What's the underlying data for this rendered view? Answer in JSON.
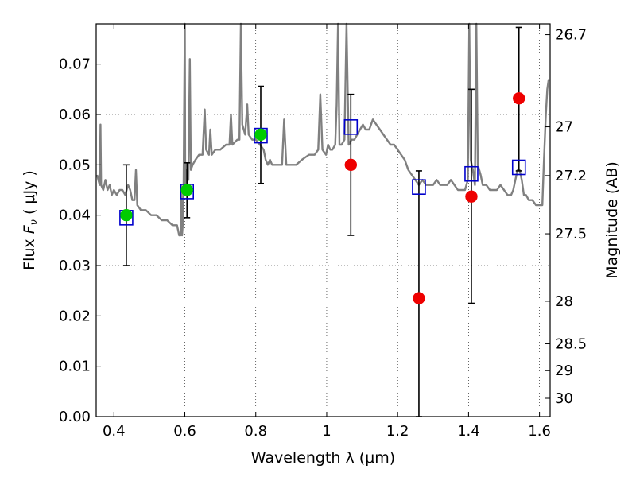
{
  "chart_data": {
    "type": "scatter",
    "xlabel": "Wavelength  λ (μm)",
    "ylabel_prefix": "Flux  ",
    "ylabel_symbol": "F",
    "ylabel_subscript": "ν",
    "ylabel_suffix": "  ( μJy )",
    "y2label": "Magnitude (AB)",
    "xlim": [
      0.35,
      1.63
    ],
    "ylim": [
      0.0,
      0.078
    ],
    "grid": true,
    "x_ticks": [
      {
        "value": 0.4,
        "label": "0.4"
      },
      {
        "value": 0.6,
        "label": "0.6"
      },
      {
        "value": 0.8,
        "label": "0.8"
      },
      {
        "value": 1.0,
        "label": "1"
      },
      {
        "value": 1.2,
        "label": "1.2"
      },
      {
        "value": 1.4,
        "label": "1.4"
      },
      {
        "value": 1.6,
        "label": "1.6"
      }
    ],
    "y_ticks": [
      {
        "value": 0.0,
        "label": "0.00"
      },
      {
        "value": 0.01,
        "label": "0.01"
      },
      {
        "value": 0.02,
        "label": "0.02"
      },
      {
        "value": 0.03,
        "label": "0.03"
      },
      {
        "value": 0.04,
        "label": "0.04"
      },
      {
        "value": 0.05,
        "label": "0.05"
      },
      {
        "value": 0.06,
        "label": "0.06"
      },
      {
        "value": 0.07,
        "label": "0.07"
      }
    ],
    "y2_ticks": [
      {
        "mag": 26.7,
        "label": "26.7"
      },
      {
        "mag": 27.0,
        "label": "27"
      },
      {
        "mag": 27.2,
        "label": "27.2"
      },
      {
        "mag": 27.5,
        "label": "27.5"
      },
      {
        "mag": 28.0,
        "label": "28"
      },
      {
        "mag": 28.5,
        "label": "28.5"
      },
      {
        "mag": 29.0,
        "label": "29"
      },
      {
        "mag": 30.0,
        "label": "30"
      }
    ],
    "series": [
      {
        "kind": "spectrum",
        "color": "#808080",
        "points": [
          [
            0.353,
            0.048
          ],
          [
            0.356,
            0.047
          ],
          [
            0.36,
            0.046
          ],
          [
            0.362,
            0.058
          ],
          [
            0.364,
            0.046
          ],
          [
            0.37,
            0.045
          ],
          [
            0.376,
            0.047
          ],
          [
            0.382,
            0.045
          ],
          [
            0.388,
            0.046
          ],
          [
            0.394,
            0.044
          ],
          [
            0.4,
            0.045
          ],
          [
            0.408,
            0.044
          ],
          [
            0.416,
            0.045
          ],
          [
            0.424,
            0.045
          ],
          [
            0.432,
            0.044
          ],
          [
            0.44,
            0.046
          ],
          [
            0.446,
            0.045
          ],
          [
            0.452,
            0.043
          ],
          [
            0.458,
            0.043
          ],
          [
            0.462,
            0.049
          ],
          [
            0.466,
            0.042
          ],
          [
            0.476,
            0.041
          ],
          [
            0.49,
            0.041
          ],
          [
            0.505,
            0.04
          ],
          [
            0.52,
            0.04
          ],
          [
            0.535,
            0.039
          ],
          [
            0.55,
            0.039
          ],
          [
            0.565,
            0.038
          ],
          [
            0.578,
            0.038
          ],
          [
            0.584,
            0.036
          ],
          [
            0.588,
            0.036
          ],
          [
            0.59,
            0.046
          ],
          [
            0.592,
            0.036
          ],
          [
            0.596,
            0.04
          ],
          [
            0.598,
            0.06
          ],
          [
            0.6,
            0.08
          ],
          [
            0.601,
            0.046
          ],
          [
            0.605,
            0.049
          ],
          [
            0.61,
            0.047
          ],
          [
            0.614,
            0.071
          ],
          [
            0.617,
            0.049
          ],
          [
            0.622,
            0.05
          ],
          [
            0.63,
            0.051
          ],
          [
            0.64,
            0.052
          ],
          [
            0.65,
            0.052
          ],
          [
            0.656,
            0.061
          ],
          [
            0.66,
            0.053
          ],
          [
            0.668,
            0.052
          ],
          [
            0.672,
            0.057
          ],
          [
            0.676,
            0.052
          ],
          [
            0.686,
            0.053
          ],
          [
            0.7,
            0.053
          ],
          [
            0.716,
            0.054
          ],
          [
            0.726,
            0.054
          ],
          [
            0.73,
            0.06
          ],
          [
            0.734,
            0.054
          ],
          [
            0.748,
            0.055
          ],
          [
            0.754,
            0.055
          ],
          [
            0.758,
            0.08
          ],
          [
            0.762,
            0.058
          ],
          [
            0.77,
            0.056
          ],
          [
            0.776,
            0.062
          ],
          [
            0.78,
            0.056
          ],
          [
            0.79,
            0.055
          ],
          [
            0.8,
            0.055
          ],
          [
            0.812,
            0.054
          ],
          [
            0.822,
            0.053
          ],
          [
            0.828,
            0.051
          ],
          [
            0.834,
            0.05
          ],
          [
            0.84,
            0.051
          ],
          [
            0.846,
            0.05
          ],
          [
            0.86,
            0.05
          ],
          [
            0.874,
            0.05
          ],
          [
            0.88,
            0.059
          ],
          [
            0.886,
            0.05
          ],
          [
            0.9,
            0.05
          ],
          [
            0.914,
            0.05
          ],
          [
            0.93,
            0.051
          ],
          [
            0.95,
            0.052
          ],
          [
            0.966,
            0.052
          ],
          [
            0.976,
            0.053
          ],
          [
            0.982,
            0.064
          ],
          [
            0.988,
            0.053
          ],
          [
            0.998,
            0.052
          ],
          [
            1.004,
            0.054
          ],
          [
            1.01,
            0.053
          ],
          [
            1.016,
            0.053
          ],
          [
            1.024,
            0.054
          ],
          [
            1.028,
            0.062
          ],
          [
            1.032,
            0.08
          ],
          [
            1.036,
            0.054
          ],
          [
            1.042,
            0.054
          ],
          [
            1.05,
            0.055
          ],
          [
            1.056,
            0.08
          ],
          [
            1.062,
            0.054
          ],
          [
            1.07,
            0.055
          ],
          [
            1.078,
            0.055
          ],
          [
            1.086,
            0.056
          ],
          [
            1.094,
            0.057
          ],
          [
            1.102,
            0.058
          ],
          [
            1.11,
            0.057
          ],
          [
            1.12,
            0.057
          ],
          [
            1.13,
            0.059
          ],
          [
            1.14,
            0.058
          ],
          [
            1.15,
            0.057
          ],
          [
            1.16,
            0.056
          ],
          [
            1.17,
            0.055
          ],
          [
            1.18,
            0.054
          ],
          [
            1.19,
            0.054
          ],
          [
            1.2,
            0.053
          ],
          [
            1.21,
            0.052
          ],
          [
            1.22,
            0.051
          ],
          [
            1.23,
            0.049
          ],
          [
            1.24,
            0.048
          ],
          [
            1.25,
            0.047
          ],
          [
            1.26,
            0.046
          ],
          [
            1.27,
            0.047
          ],
          [
            1.28,
            0.046
          ],
          [
            1.29,
            0.046
          ],
          [
            1.3,
            0.046
          ],
          [
            1.31,
            0.047
          ],
          [
            1.32,
            0.046
          ],
          [
            1.33,
            0.046
          ],
          [
            1.34,
            0.046
          ],
          [
            1.35,
            0.047
          ],
          [
            1.36,
            0.046
          ],
          [
            1.37,
            0.045
          ],
          [
            1.38,
            0.045
          ],
          [
            1.39,
            0.045
          ],
          [
            1.398,
            0.047
          ],
          [
            1.402,
            0.08
          ],
          [
            1.406,
            0.051
          ],
          [
            1.412,
            0.049
          ],
          [
            1.418,
            0.046
          ],
          [
            1.422,
            0.08
          ],
          [
            1.426,
            0.05
          ],
          [
            1.434,
            0.048
          ],
          [
            1.44,
            0.046
          ],
          [
            1.45,
            0.046
          ],
          [
            1.46,
            0.045
          ],
          [
            1.47,
            0.045
          ],
          [
            1.48,
            0.045
          ],
          [
            1.49,
            0.046
          ],
          [
            1.5,
            0.045
          ],
          [
            1.51,
            0.044
          ],
          [
            1.52,
            0.044
          ],
          [
            1.526,
            0.045
          ],
          [
            1.532,
            0.047
          ],
          [
            1.538,
            0.049
          ],
          [
            1.544,
            0.049
          ],
          [
            1.55,
            0.047
          ],
          [
            1.556,
            0.044
          ],
          [
            1.562,
            0.044
          ],
          [
            1.57,
            0.043
          ],
          [
            1.58,
            0.043
          ],
          [
            1.59,
            0.042
          ],
          [
            1.6,
            0.042
          ],
          [
            1.608,
            0.042
          ],
          [
            1.612,
            0.05
          ],
          [
            1.618,
            0.06
          ],
          [
            1.622,
            0.065
          ],
          [
            1.626,
            0.067
          ]
        ]
      },
      {
        "kind": "model-squares",
        "marker": "open-square",
        "color": "#0000cc",
        "points": [
          {
            "x": 0.435,
            "y": 0.0395
          },
          {
            "x": 0.606,
            "y": 0.0447
          },
          {
            "x": 0.814,
            "y": 0.0558
          },
          {
            "x": 1.068,
            "y": 0.0575
          },
          {
            "x": 1.26,
            "y": 0.0456
          },
          {
            "x": 1.408,
            "y": 0.0482
          },
          {
            "x": 1.542,
            "y": 0.0495
          }
        ]
      },
      {
        "kind": "detections",
        "marker": "filled-circle",
        "color": "#00cc00",
        "points": [
          {
            "x": 0.435,
            "y": 0.04,
            "err_low": 0.03,
            "err_high": 0.05
          },
          {
            "x": 0.606,
            "y": 0.045,
            "err_low": 0.0395,
            "err_high": 0.0504
          },
          {
            "x": 0.814,
            "y": 0.056,
            "err_low": 0.0463,
            "err_high": 0.0656
          }
        ]
      },
      {
        "kind": "upper-limits",
        "marker": "filled-circle",
        "color": "#ee0000",
        "points": [
          {
            "x": 1.068,
            "y": 0.05,
            "err_low": 0.036,
            "err_high": 0.064
          },
          {
            "x": 1.26,
            "y": 0.0235,
            "err_low": 0.0,
            "err_high": 0.0488
          },
          {
            "x": 1.408,
            "y": 0.0437,
            "err_low": 0.0225,
            "err_high": 0.065
          },
          {
            "x": 1.542,
            "y": 0.0632,
            "err_low": 0.0488,
            "err_high": 0.0773
          }
        ]
      }
    ]
  }
}
